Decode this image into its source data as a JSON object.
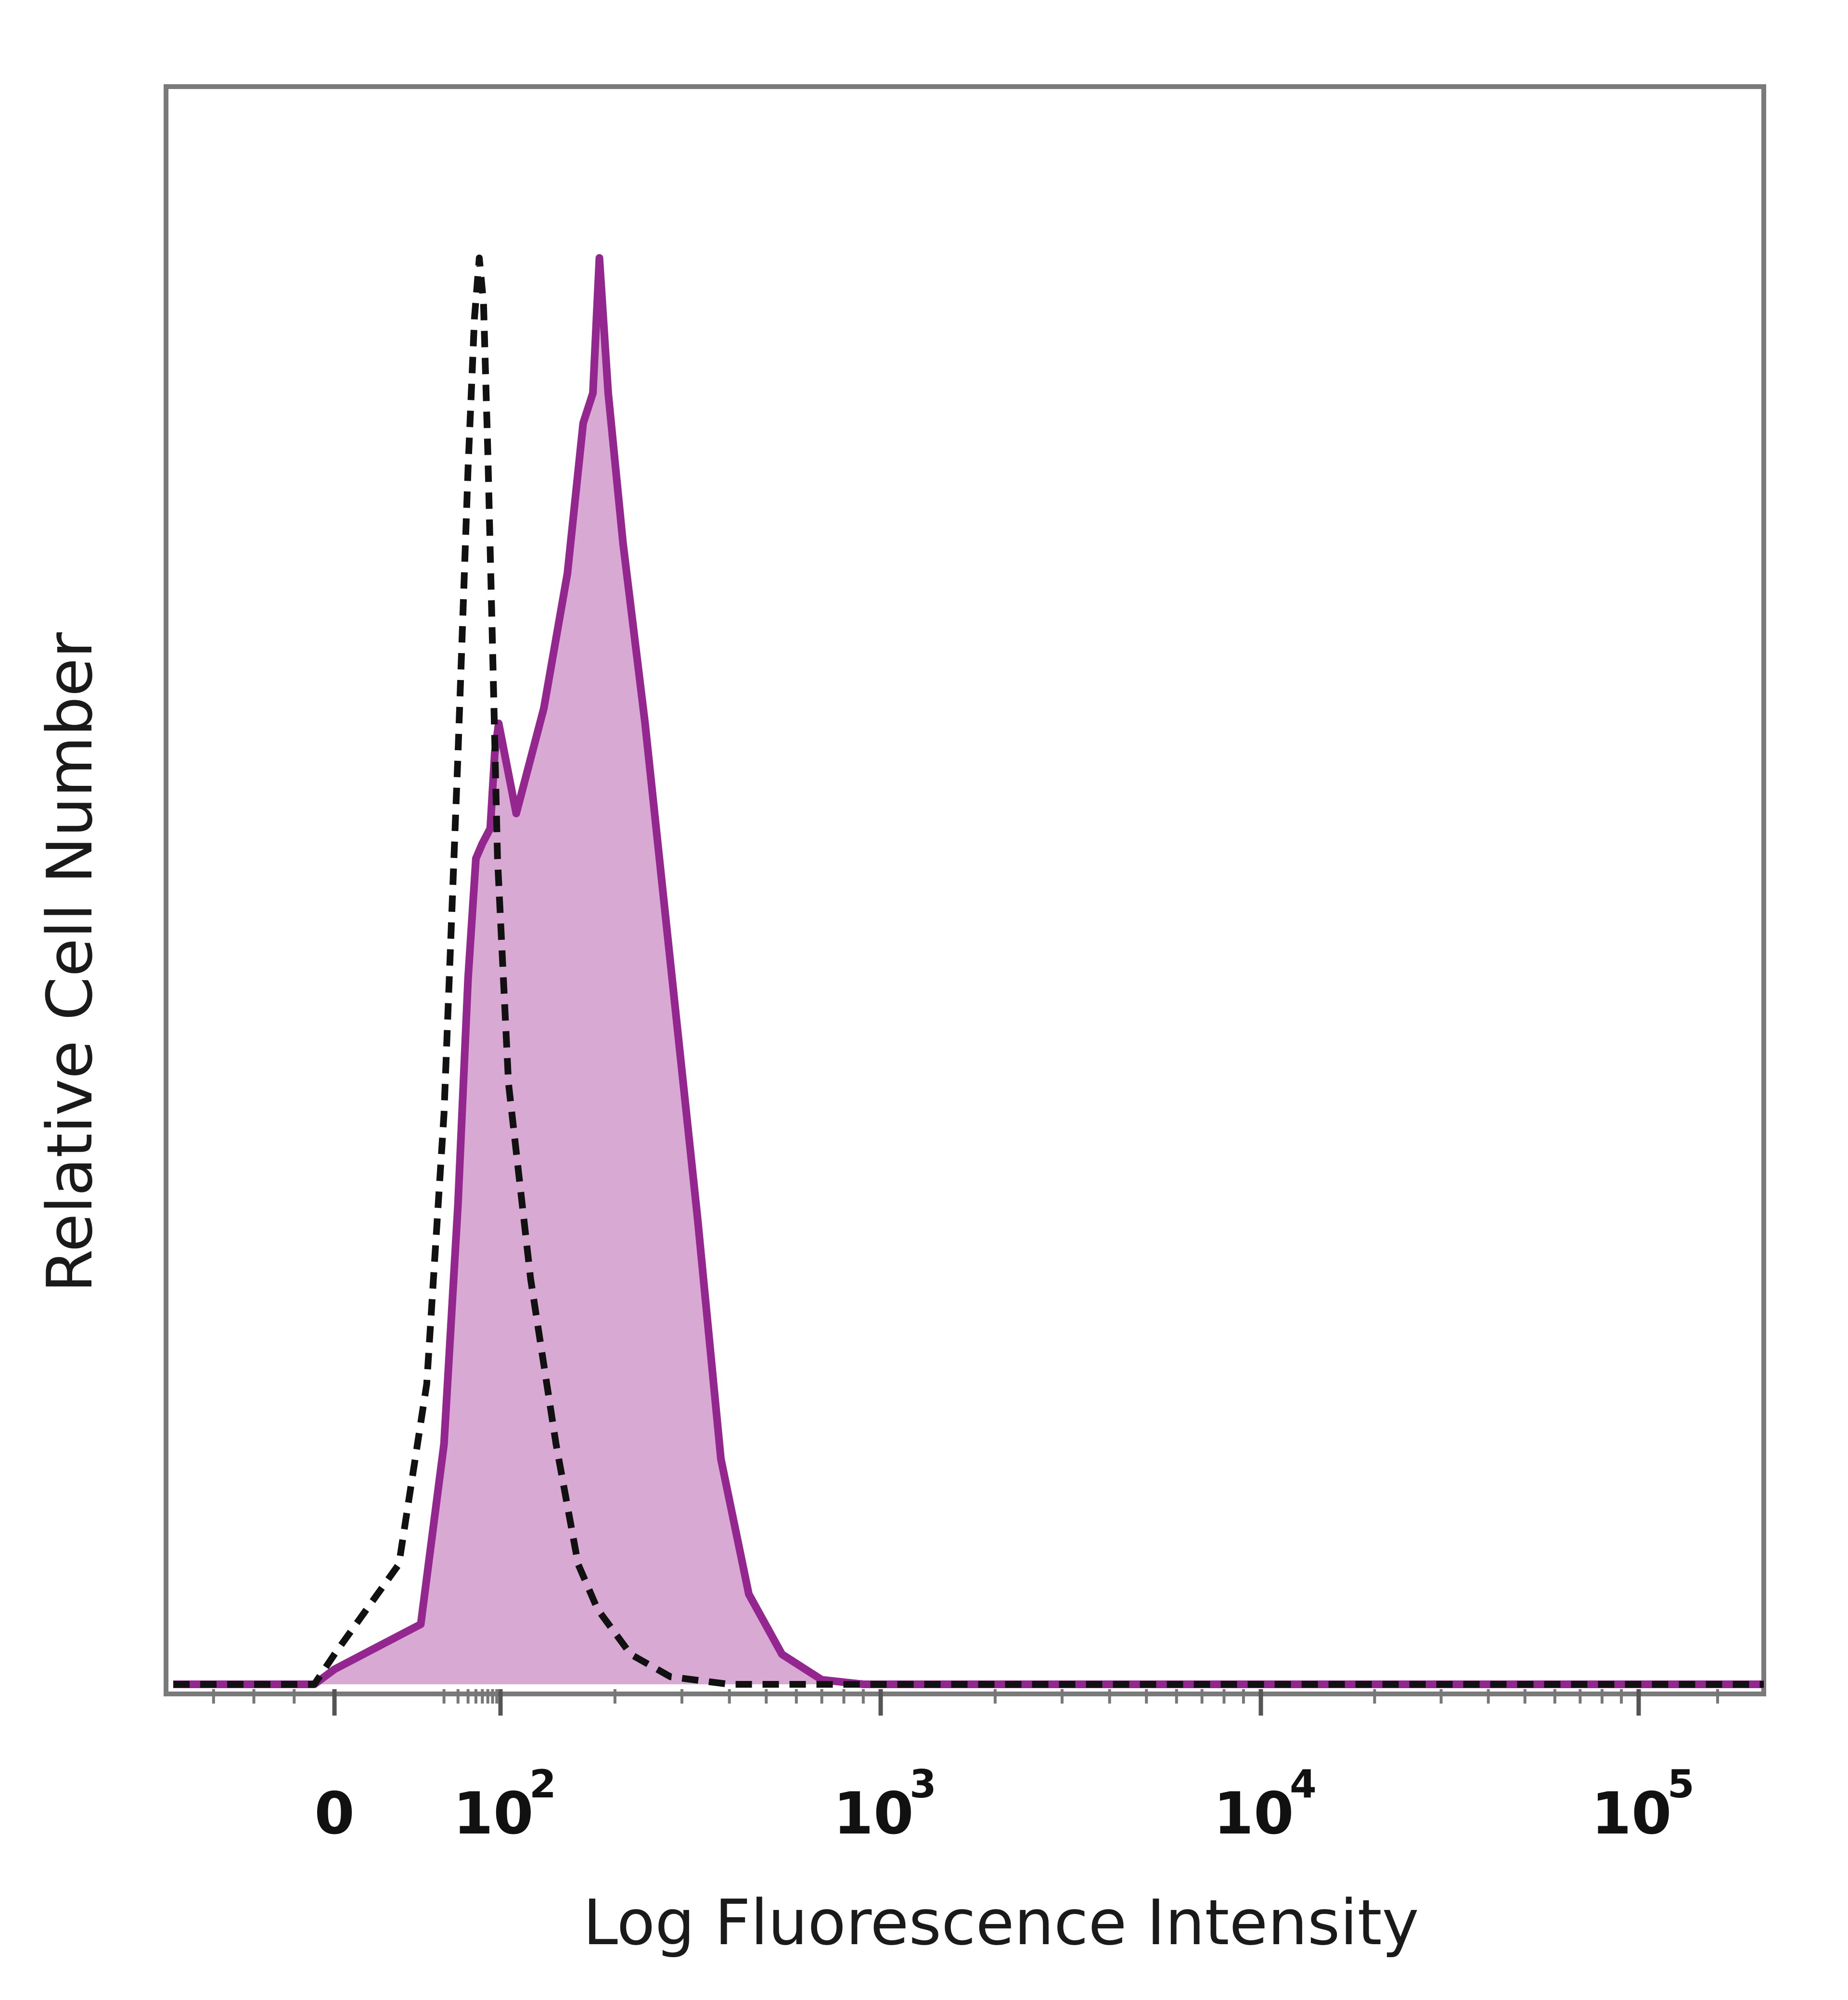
{
  "chart_data": {
    "type": "area",
    "title": "",
    "xlabel": "Log Fluorescence Intensity",
    "ylabel": "Relative Cell Number",
    "x_scale": "biexponential",
    "xlim": [
      -80,
      300000
    ],
    "ylim": [
      0,
      1
    ],
    "grid": false,
    "legend": "none",
    "x_ticks": [
      {
        "value": 0,
        "base": "0",
        "exp": ""
      },
      {
        "value": 100,
        "base": "10",
        "exp": "2"
      },
      {
        "value": 1000,
        "base": "10",
        "exp": "3"
      },
      {
        "value": 10000,
        "base": "10",
        "exp": "4"
      },
      {
        "value": 100000,
        "base": "10",
        "exp": "5"
      }
    ],
    "series": [
      {
        "style": "dashed",
        "color": "#111111",
        "points": [
          [
            -80,
            0
          ],
          [
            -10,
            0
          ],
          [
            0,
            0.02
          ],
          [
            5,
            0.08
          ],
          [
            12,
            0.2
          ],
          [
            20,
            0.38
          ],
          [
            30,
            0.62
          ],
          [
            40,
            0.81
          ],
          [
            48,
            0.91
          ],
          [
            55,
            0.95
          ],
          [
            62,
            0.92
          ],
          [
            70,
            0.82
          ],
          [
            80,
            0.69
          ],
          [
            92,
            0.55
          ],
          [
            105,
            0.4
          ],
          [
            120,
            0.27
          ],
          [
            140,
            0.16
          ],
          [
            160,
            0.08
          ],
          [
            180,
            0.05
          ],
          [
            220,
            0.02
          ],
          [
            280,
            0.005
          ],
          [
            400,
            0
          ],
          [
            300000,
            0
          ]
        ]
      },
      {
        "style": "filled",
        "color": "#93278f",
        "fill": "#d8a9d3",
        "points": [
          [
            -80,
            0
          ],
          [
            -10,
            0
          ],
          [
            0,
            0.01
          ],
          [
            10,
            0.04
          ],
          [
            20,
            0.16
          ],
          [
            30,
            0.32
          ],
          [
            40,
            0.47
          ],
          [
            50,
            0.55
          ],
          [
            60,
            0.56
          ],
          [
            75,
            0.57
          ],
          [
            85,
            0.62
          ],
          [
            95,
            0.64
          ],
          [
            110,
            0.58
          ],
          [
            130,
            0.65
          ],
          [
            150,
            0.74
          ],
          [
            165,
            0.84
          ],
          [
            175,
            0.86
          ],
          [
            182,
            0.95
          ],
          [
            192,
            0.86
          ],
          [
            210,
            0.76
          ],
          [
            240,
            0.64
          ],
          [
            280,
            0.48
          ],
          [
            330,
            0.31
          ],
          [
            380,
            0.15
          ],
          [
            450,
            0.06
          ],
          [
            550,
            0.02
          ],
          [
            700,
            0.003
          ],
          [
            900,
            0
          ],
          [
            300000,
            0
          ]
        ]
      }
    ]
  }
}
